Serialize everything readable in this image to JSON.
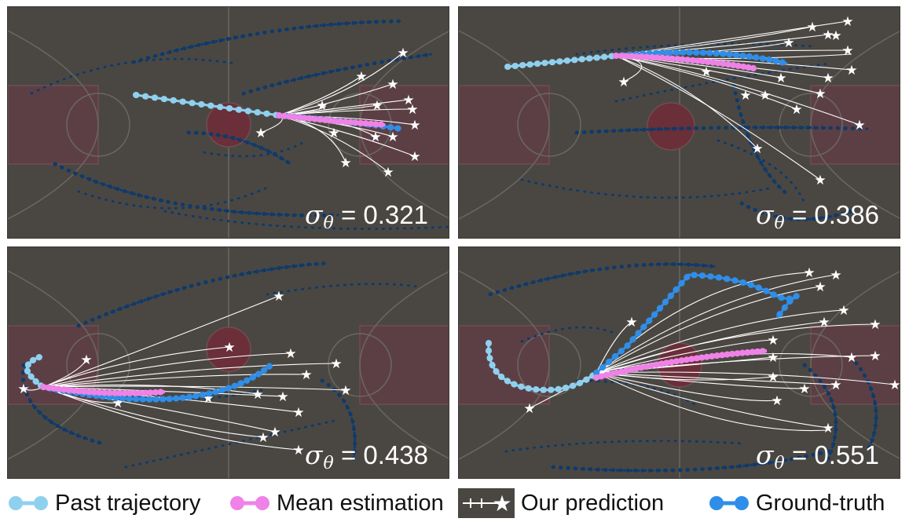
{
  "panels": [
    {
      "sigma_value": "0.321"
    },
    {
      "sigma_value": "0.386"
    },
    {
      "sigma_value": "0.438"
    },
    {
      "sigma_value": "0.551"
    }
  ],
  "sigma_symbol": "σ",
  "sigma_subscript": "θ",
  "sigma_equals": " = ",
  "legend": [
    {
      "label": "Past trajectory",
      "icon": "past-trajectory-icon",
      "color": "#8fd0ee"
    },
    {
      "label": "Mean estimation",
      "icon": "mean-estimation-icon",
      "color": "#ee82e6"
    },
    {
      "label": "Our prediction",
      "icon": "prediction-star-icon",
      "color": "#ffffff"
    },
    {
      "label": "Ground-truth",
      "icon": "ground-truth-icon",
      "color": "#2f8ee8"
    }
  ],
  "colors": {
    "court": "#4a4742",
    "court_lines": "#6b6760",
    "paint": "#5c3f45",
    "other_players": "#0f3a6b",
    "past": "#8fd0ee",
    "mean": "#ee82e6",
    "ground_truth": "#2f8ee8",
    "prediction": "#ffffff"
  }
}
